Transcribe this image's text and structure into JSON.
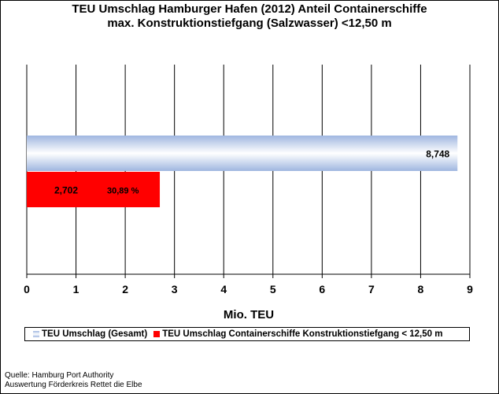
{
  "chart_data": {
    "type": "bar",
    "orientation": "horizontal",
    "title_line1": "TEU Umschlag Hamburger Hafen (2012) Anteil Containerschiffe",
    "title_line2": "max. Konstruktionstiefgang (Salzwasser) <12,50 m",
    "xlabel": "Mio. TEU",
    "xlim": [
      0,
      9
    ],
    "xticks": [
      "0",
      "1",
      "2",
      "3",
      "4",
      "5",
      "6",
      "7",
      "8",
      "9"
    ],
    "grid": "vertical",
    "legend_position": "bottom",
    "series": [
      {
        "name": "TEU Umschlag (Gesamt)",
        "value": 8.748,
        "label": "8,748",
        "color": "#c5d4ee",
        "color_gradient": [
          "#9fb6e0",
          "#ffffff",
          "#9fb6e0"
        ]
      },
      {
        "name": "TEU Umschlag Containerschiffe Konstruktionstiefgang < 12,50 m",
        "value": 2.702,
        "label": "2,702",
        "percent_label": "30,89 %",
        "color": "#ff0000"
      }
    ]
  },
  "source_line1": "Quelle: Hamburg Port Authority",
  "source_line2": "Auswertung Förderkreis Rettet die Elbe"
}
